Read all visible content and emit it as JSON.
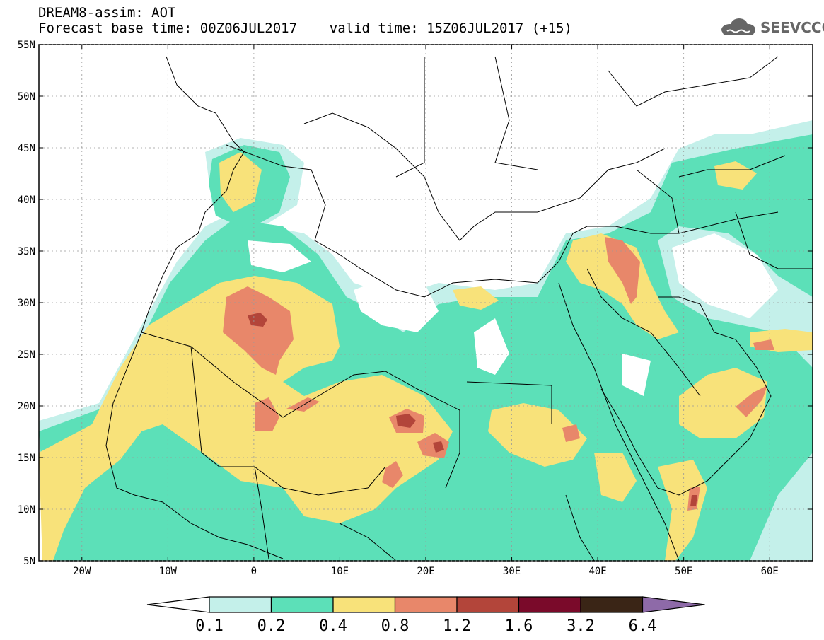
{
  "header": {
    "line1": "DREAM8-assim: AOT",
    "line2": "Forecast base time: 00Z06JUL2017    valid time: 15Z06JUL2017 (+15)"
  },
  "logo": {
    "text": "SEEVCCC",
    "icon": "cloud-icon",
    "color": "#666666"
  },
  "map": {
    "lon_range": [
      -25,
      65
    ],
    "lat_range": [
      5,
      55
    ],
    "lon_ticks": [
      {
        "value": -20,
        "label": "20W"
      },
      {
        "value": -10,
        "label": "10W"
      },
      {
        "value": 0,
        "label": "0"
      },
      {
        "value": 10,
        "label": "10E"
      },
      {
        "value": 20,
        "label": "20E"
      },
      {
        "value": 30,
        "label": "30E"
      },
      {
        "value": 40,
        "label": "40E"
      },
      {
        "value": 50,
        "label": "50E"
      },
      {
        "value": 60,
        "label": "60E"
      }
    ],
    "lat_ticks": [
      {
        "value": 55,
        "label": "55N"
      },
      {
        "value": 50,
        "label": "50N"
      },
      {
        "value": 45,
        "label": "45N"
      },
      {
        "value": 40,
        "label": "40N"
      },
      {
        "value": 35,
        "label": "35N"
      },
      {
        "value": 30,
        "label": "30N"
      },
      {
        "value": 25,
        "label": "25N"
      },
      {
        "value": 20,
        "label": "20N"
      },
      {
        "value": 15,
        "label": "15N"
      },
      {
        "value": 10,
        "label": "10N"
      },
      {
        "value": 5,
        "label": "5N"
      }
    ]
  },
  "colorbar": {
    "bins": [
      {
        "color": "#c4f0ea"
      },
      {
        "color": "#5ce0b8"
      },
      {
        "color": "#f8e27a"
      },
      {
        "color": "#e8876a"
      },
      {
        "color": "#b3453a"
      },
      {
        "color": "#7a0a2a"
      },
      {
        "color": "#3a2516"
      }
    ],
    "under_color": "#ffffff",
    "over_color": "#8e6aa8",
    "labels": [
      "0.1",
      "0.2",
      "0.4",
      "0.8",
      "1.2",
      "1.6",
      "3.2",
      "6.4"
    ]
  }
}
